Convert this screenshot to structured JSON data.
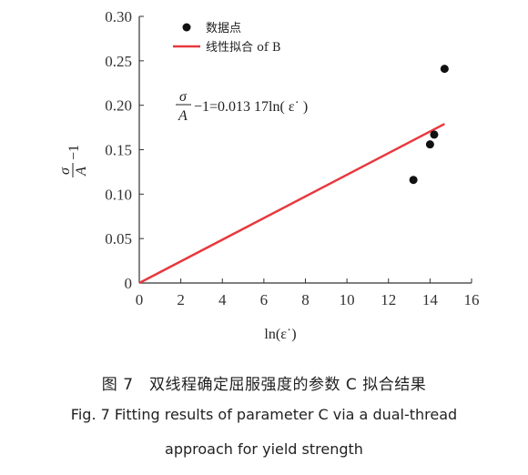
{
  "chart_data": {
    "type": "scatter",
    "xlim": [
      0,
      16
    ],
    "ylim": [
      0,
      0.3
    ],
    "x_ticks": [
      "0",
      "2",
      "4",
      "6",
      "8",
      "10",
      "12",
      "14",
      "16"
    ],
    "y_ticks": [
      "0",
      "0.05",
      "0.10",
      "0.15",
      "0.20",
      "0.25",
      "0.30"
    ],
    "xlabel": "ln(ε˙)",
    "ylabel_frac_num": "σ",
    "ylabel_frac_den": "A",
    "ylabel_suffix": "−1",
    "grid": false,
    "legend_position": "top-left",
    "series": [
      {
        "name": "数据点",
        "kind": "points",
        "color": "#111111",
        "x": [
          13.2,
          14.0,
          14.2,
          14.7
        ],
        "y": [
          0.116,
          0.156,
          0.167,
          0.241
        ]
      },
      {
        "name": "线性拟合 of B",
        "kind": "line",
        "color": "#e8383d",
        "slope": 0.01317,
        "x": [
          0,
          14.7
        ],
        "y": [
          0,
          0.179
        ]
      }
    ],
    "annotation": {
      "frac_num": "σ",
      "frac_den": "A",
      "rest": "−1=0.013 17ln( ε˙ )"
    }
  },
  "caption": {
    "zh": "图 7　双线程确定屈服强度的参数 C 拟合结果",
    "en_line1": "Fig.  7  Fitting results of parameter C via a dual-thread",
    "en_line2": "approach for yield strength"
  }
}
